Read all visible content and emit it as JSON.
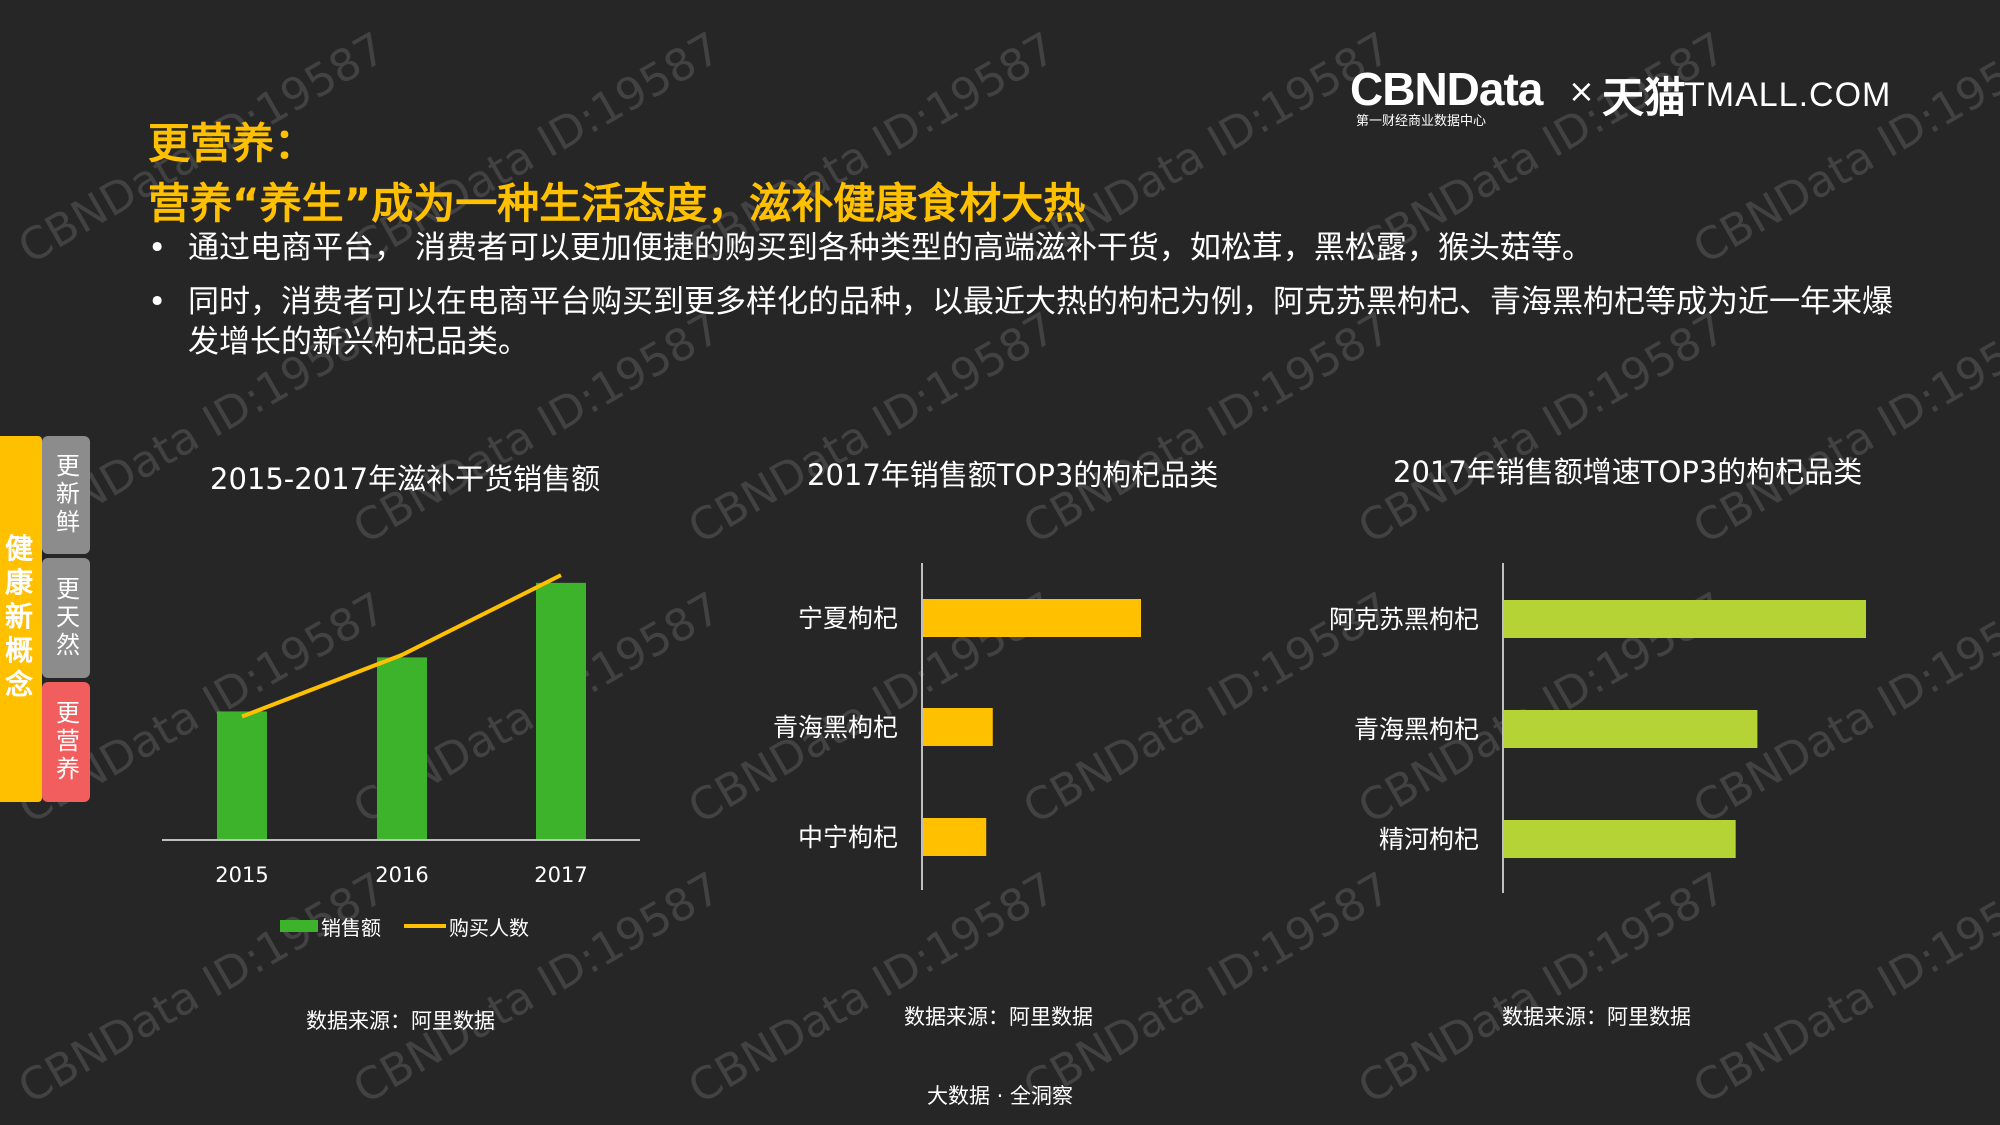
{
  "watermark": "CBNData ID:19587",
  "logo": {
    "brand": "CBNData",
    "brand_sub": "第一财经商业数据中心",
    "cross": "×",
    "partner_cn": "天猫",
    "partner_en": "TMALL.COM"
  },
  "title_line1": "更营养：",
  "title_line2": "营养“养生”成为一种生活态度，滋补健康食材大热",
  "bullets": [
    "通过电商平台， 消费者可以更加便捷的购买到各种类型的高端滋补干货，如松茸，黑松露，猴头菇等。",
    "同时，消费者可以在电商平台购买到更多样化的品种，以最近大热的枸杞为例，阿克苏黑枸杞、青海黑枸杞等成为近一年来爆发增长的新兴枸杞品类。"
  ],
  "side_nav": {
    "main": "健康新概念",
    "tabs": [
      "更新鲜",
      "更天然",
      "更营养"
    ]
  },
  "colors": {
    "accent": "#ffc000",
    "green": "#3db32b",
    "lime": "#b5d334",
    "tab_gray": "#8c8c8c",
    "tab_red": "#f25d5d"
  },
  "chart_data": [
    {
      "type": "bar",
      "title": "2015-2017年滋补干货销售额",
      "categories": [
        "2015",
        "2016",
        "2017"
      ],
      "series": [
        {
          "name": "销售额",
          "type": "bar",
          "values": [
            5,
            7.1,
            10
          ],
          "color": "#3db32b"
        },
        {
          "name": "购买人数",
          "type": "line",
          "values": [
            4.8,
            7.2,
            10.3
          ],
          "color": "#ffc000"
        }
      ],
      "ylim": [
        0,
        10.5
      ],
      "legend": "bottom",
      "grid": false,
      "source": "数据来源：阿里数据"
    },
    {
      "type": "bar",
      "orientation": "horizontal",
      "title": "2017年销售额TOP3的枸杞品类",
      "categories": [
        "宁夏枸杞",
        "青海黑枸杞",
        "中宁枸杞"
      ],
      "values": [
        100,
        32,
        29
      ],
      "xlim": [
        0,
        100
      ],
      "color": "#ffc000",
      "grid": false,
      "source": "数据来源：阿里数据"
    },
    {
      "type": "bar",
      "orientation": "horizontal",
      "title": "2017年销售额增速TOP3的枸杞品类",
      "categories": [
        "阿克苏黑枸杞",
        "青海黑枸杞",
        "精河枸杞"
      ],
      "values": [
        100,
        70,
        64
      ],
      "xlim": [
        0,
        100
      ],
      "color": "#b5d334",
      "grid": false,
      "source": "数据来源：阿里数据"
    }
  ],
  "footer": "大数据 · 全洞察"
}
